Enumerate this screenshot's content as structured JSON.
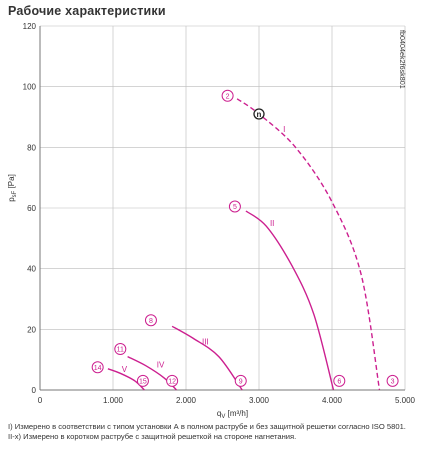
{
  "title": "Рабочие характеристики",
  "code": "fb0404ek2f6sk801",
  "footnotes": [
    "I) Измерено в соответствии с типом установки А в полном раструбе и без защитной решетки согласно ISO 5801.",
    "II-x) Измерено в коротком раструбе с защитной решеткой на стороне нагнетания."
  ],
  "colors": {
    "curve": "#cc1f8f",
    "grid": "#bbbbbb",
    "axis": "#777777",
    "text": "#333333"
  },
  "chart_data": {
    "type": "line",
    "xlabel": "q",
    "xlabel_sub": "V",
    "xlabel_unit": "[m³/h]",
    "ylabel": "p",
    "ylabel_sub": "sF",
    "ylabel_unit": "[Pa]",
    "xlim": [
      0,
      5000
    ],
    "ylim": [
      0,
      120
    ],
    "x_ticks": [
      0,
      1000,
      2000,
      3000,
      4000,
      5000
    ],
    "x_tick_labels": [
      "0",
      "1.000",
      "2.000",
      "3.000",
      "4.000",
      "5.000"
    ],
    "y_ticks": [
      0,
      20,
      40,
      60,
      80,
      100,
      120
    ],
    "y_tick_labels": [
      "0",
      "20",
      "40",
      "60",
      "80",
      "100",
      "120"
    ],
    "grid": true,
    "series": [
      {
        "name": "I",
        "dashed": true,
        "label_at": [
          3330,
          85
        ],
        "points": [
          [
            2700,
            96
          ],
          [
            3000,
            91
          ],
          [
            3500,
            80
          ],
          [
            4000,
            62
          ],
          [
            4400,
            38
          ],
          [
            4650,
            0
          ]
        ]
      },
      {
        "name": "II",
        "dashed": false,
        "label_at": [
          3150,
          54
        ],
        "points": [
          [
            2820,
            59
          ],
          [
            3100,
            54
          ],
          [
            3450,
            41
          ],
          [
            3750,
            25
          ],
          [
            4020,
            0
          ]
        ]
      },
      {
        "name": "III",
        "dashed": false,
        "label_at": [
          2220,
          15
        ],
        "points": [
          [
            1810,
            21
          ],
          [
            2100,
            17
          ],
          [
            2450,
            11
          ],
          [
            2770,
            0
          ]
        ]
      },
      {
        "name": "IV",
        "dashed": false,
        "label_at": [
          1600,
          7.5
        ],
        "points": [
          [
            1200,
            11
          ],
          [
            1450,
            8
          ],
          [
            1700,
            4
          ],
          [
            1870,
            0
          ]
        ]
      },
      {
        "name": "V",
        "dashed": false,
        "label_at": [
          1120,
          6
        ],
        "points": [
          [
            930,
            7
          ],
          [
            1100,
            5.5
          ],
          [
            1300,
            3
          ],
          [
            1430,
            0
          ]
        ]
      }
    ],
    "operating_point": {
      "label": "n",
      "x": 3000,
      "y": 91
    },
    "markers": [
      {
        "label": "2",
        "x": 2570,
        "y": 97
      },
      {
        "label": "5",
        "x": 2670,
        "y": 60.5
      },
      {
        "label": "8",
        "x": 1520,
        "y": 23
      },
      {
        "label": "11",
        "x": 1100,
        "y": 13.5
      },
      {
        "label": "14",
        "x": 790,
        "y": 7.5
      },
      {
        "label": "15",
        "x": 1410,
        "y": 3
      },
      {
        "label": "12",
        "x": 1810,
        "y": 3
      },
      {
        "label": "9",
        "x": 2750,
        "y": 3
      },
      {
        "label": "6",
        "x": 4100,
        "y": 3
      },
      {
        "label": "3",
        "x": 4830,
        "y": 3
      }
    ]
  }
}
